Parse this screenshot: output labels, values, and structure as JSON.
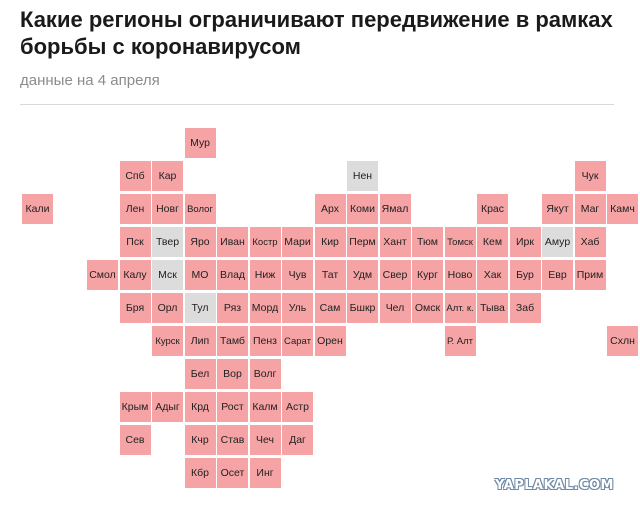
{
  "header": {
    "title": "Какие регионы ограничивают передвижение в рамках борьбы с коронавирусом",
    "subtitle": "данные на 4 апреля"
  },
  "colors": {
    "restricted": "#f5a3a5",
    "not_restricted": "#dcdcdc"
  },
  "map": {
    "tiles": [
      {
        "label": "Мур",
        "row": 0,
        "col": 5,
        "status": "restricted"
      },
      {
        "label": "Спб",
        "row": 1,
        "col": 3,
        "status": "restricted"
      },
      {
        "label": "Кар",
        "row": 1,
        "col": 4,
        "status": "restricted"
      },
      {
        "label": "Нен",
        "row": 1,
        "col": 10,
        "status": "not_restricted"
      },
      {
        "label": "Чук",
        "row": 1,
        "col": 17,
        "status": "restricted"
      },
      {
        "label": "Кали",
        "row": 2,
        "col": 0,
        "status": "restricted"
      },
      {
        "label": "Лен",
        "row": 2,
        "col": 3,
        "status": "restricted"
      },
      {
        "label": "Новг",
        "row": 2,
        "col": 4,
        "status": "restricted"
      },
      {
        "label": "Волог",
        "row": 2,
        "col": 5,
        "status": "restricted"
      },
      {
        "label": "Арх",
        "row": 2,
        "col": 9,
        "status": "restricted"
      },
      {
        "label": "Коми",
        "row": 2,
        "col": 10,
        "status": "restricted"
      },
      {
        "label": "Ямал",
        "row": 2,
        "col": 11,
        "status": "restricted"
      },
      {
        "label": "Крас",
        "row": 2,
        "col": 14,
        "status": "restricted"
      },
      {
        "label": "Якут",
        "row": 2,
        "col": 16,
        "status": "restricted"
      },
      {
        "label": "Маг",
        "row": 2,
        "col": 17,
        "status": "restricted"
      },
      {
        "label": "Камч",
        "row": 2,
        "col": 18,
        "status": "restricted"
      },
      {
        "label": "Пск",
        "row": 3,
        "col": 3,
        "status": "restricted"
      },
      {
        "label": "Твер",
        "row": 3,
        "col": 4,
        "status": "not_restricted"
      },
      {
        "label": "Яро",
        "row": 3,
        "col": 5,
        "status": "restricted"
      },
      {
        "label": "Иван",
        "row": 3,
        "col": 6,
        "status": "restricted"
      },
      {
        "label": "Костр",
        "row": 3,
        "col": 7,
        "status": "restricted"
      },
      {
        "label": "Мари",
        "row": 3,
        "col": 8,
        "status": "restricted"
      },
      {
        "label": "Кир",
        "row": 3,
        "col": 9,
        "status": "restricted"
      },
      {
        "label": "Перм",
        "row": 3,
        "col": 10,
        "status": "restricted"
      },
      {
        "label": "Хант",
        "row": 3,
        "col": 11,
        "status": "restricted"
      },
      {
        "label": "Тюм",
        "row": 3,
        "col": 12,
        "status": "restricted"
      },
      {
        "label": "Томск",
        "row": 3,
        "col": 13,
        "status": "restricted"
      },
      {
        "label": "Кем",
        "row": 3,
        "col": 14,
        "status": "restricted"
      },
      {
        "label": "Ирк",
        "row": 3,
        "col": 15,
        "status": "restricted"
      },
      {
        "label": "Амур",
        "row": 3,
        "col": 16,
        "status": "not_restricted"
      },
      {
        "label": "Хаб",
        "row": 3,
        "col": 17,
        "status": "restricted"
      },
      {
        "label": "Смол",
        "row": 4,
        "col": 2,
        "status": "restricted"
      },
      {
        "label": "Калу",
        "row": 4,
        "col": 3,
        "status": "restricted"
      },
      {
        "label": "Мск",
        "row": 4,
        "col": 4,
        "status": "not_restricted"
      },
      {
        "label": "МО",
        "row": 4,
        "col": 5,
        "status": "restricted"
      },
      {
        "label": "Влад",
        "row": 4,
        "col": 6,
        "status": "restricted"
      },
      {
        "label": "Ниж",
        "row": 4,
        "col": 7,
        "status": "restricted"
      },
      {
        "label": "Чув",
        "row": 4,
        "col": 8,
        "status": "restricted"
      },
      {
        "label": "Тат",
        "row": 4,
        "col": 9,
        "status": "restricted"
      },
      {
        "label": "Удм",
        "row": 4,
        "col": 10,
        "status": "restricted"
      },
      {
        "label": "Свер",
        "row": 4,
        "col": 11,
        "status": "restricted"
      },
      {
        "label": "Кург",
        "row": 4,
        "col": 12,
        "status": "restricted"
      },
      {
        "label": "Ново",
        "row": 4,
        "col": 13,
        "status": "restricted"
      },
      {
        "label": "Хак",
        "row": 4,
        "col": 14,
        "status": "restricted"
      },
      {
        "label": "Бур",
        "row": 4,
        "col": 15,
        "status": "restricted"
      },
      {
        "label": "Евр",
        "row": 4,
        "col": 16,
        "status": "restricted"
      },
      {
        "label": "Прим",
        "row": 4,
        "col": 17,
        "status": "restricted"
      },
      {
        "label": "Бря",
        "row": 5,
        "col": 3,
        "status": "restricted"
      },
      {
        "label": "Орл",
        "row": 5,
        "col": 4,
        "status": "restricted"
      },
      {
        "label": "Тул",
        "row": 5,
        "col": 5,
        "status": "not_restricted"
      },
      {
        "label": "Ряз",
        "row": 5,
        "col": 6,
        "status": "restricted"
      },
      {
        "label": "Морд",
        "row": 5,
        "col": 7,
        "status": "restricted"
      },
      {
        "label": "Уль",
        "row": 5,
        "col": 8,
        "status": "restricted"
      },
      {
        "label": "Сам",
        "row": 5,
        "col": 9,
        "status": "restricted"
      },
      {
        "label": "Бшкр",
        "row": 5,
        "col": 10,
        "status": "restricted"
      },
      {
        "label": "Чел",
        "row": 5,
        "col": 11,
        "status": "restricted"
      },
      {
        "label": "Омск",
        "row": 5,
        "col": 12,
        "status": "restricted"
      },
      {
        "label": "Алт. к.",
        "row": 5,
        "col": 13,
        "status": "restricted"
      },
      {
        "label": "Тыва",
        "row": 5,
        "col": 14,
        "status": "restricted"
      },
      {
        "label": "Заб",
        "row": 5,
        "col": 15,
        "status": "restricted"
      },
      {
        "label": "Курск",
        "row": 6,
        "col": 4,
        "status": "restricted"
      },
      {
        "label": "Лип",
        "row": 6,
        "col": 5,
        "status": "restricted"
      },
      {
        "label": "Тамб",
        "row": 6,
        "col": 6,
        "status": "restricted"
      },
      {
        "label": "Пенз",
        "row": 6,
        "col": 7,
        "status": "restricted"
      },
      {
        "label": "Сарат",
        "row": 6,
        "col": 8,
        "status": "restricted"
      },
      {
        "label": "Орен",
        "row": 6,
        "col": 9,
        "status": "restricted"
      },
      {
        "label": "Р. Алт",
        "row": 6,
        "col": 13,
        "status": "restricted"
      },
      {
        "label": "Схлн",
        "row": 6,
        "col": 18,
        "status": "restricted"
      },
      {
        "label": "Бел",
        "row": 7,
        "col": 5,
        "status": "restricted"
      },
      {
        "label": "Вор",
        "row": 7,
        "col": 6,
        "status": "restricted"
      },
      {
        "label": "Волг",
        "row": 7,
        "col": 7,
        "status": "restricted"
      },
      {
        "label": "Крым",
        "row": 8,
        "col": 3,
        "status": "restricted"
      },
      {
        "label": "Адыг",
        "row": 8,
        "col": 4,
        "status": "restricted"
      },
      {
        "label": "Крд",
        "row": 8,
        "col": 5,
        "status": "restricted"
      },
      {
        "label": "Рост",
        "row": 8,
        "col": 6,
        "status": "restricted"
      },
      {
        "label": "Калм",
        "row": 8,
        "col": 7,
        "status": "restricted"
      },
      {
        "label": "Астр",
        "row": 8,
        "col": 8,
        "status": "restricted"
      },
      {
        "label": "Сев",
        "row": 9,
        "col": 3,
        "status": "restricted"
      },
      {
        "label": "Кчр",
        "row": 9,
        "col": 5,
        "status": "restricted"
      },
      {
        "label": "Став",
        "row": 9,
        "col": 6,
        "status": "restricted"
      },
      {
        "label": "Чеч",
        "row": 9,
        "col": 7,
        "status": "restricted"
      },
      {
        "label": "Даг",
        "row": 9,
        "col": 8,
        "status": "restricted"
      },
      {
        "label": "Кбр",
        "row": 10,
        "col": 5,
        "status": "restricted"
      },
      {
        "label": "Осет",
        "row": 10,
        "col": 6,
        "status": "restricted"
      },
      {
        "label": "Инг",
        "row": 10,
        "col": 7,
        "status": "restricted"
      }
    ]
  },
  "watermark": {
    "text": "YAPLAKAL.COM"
  }
}
